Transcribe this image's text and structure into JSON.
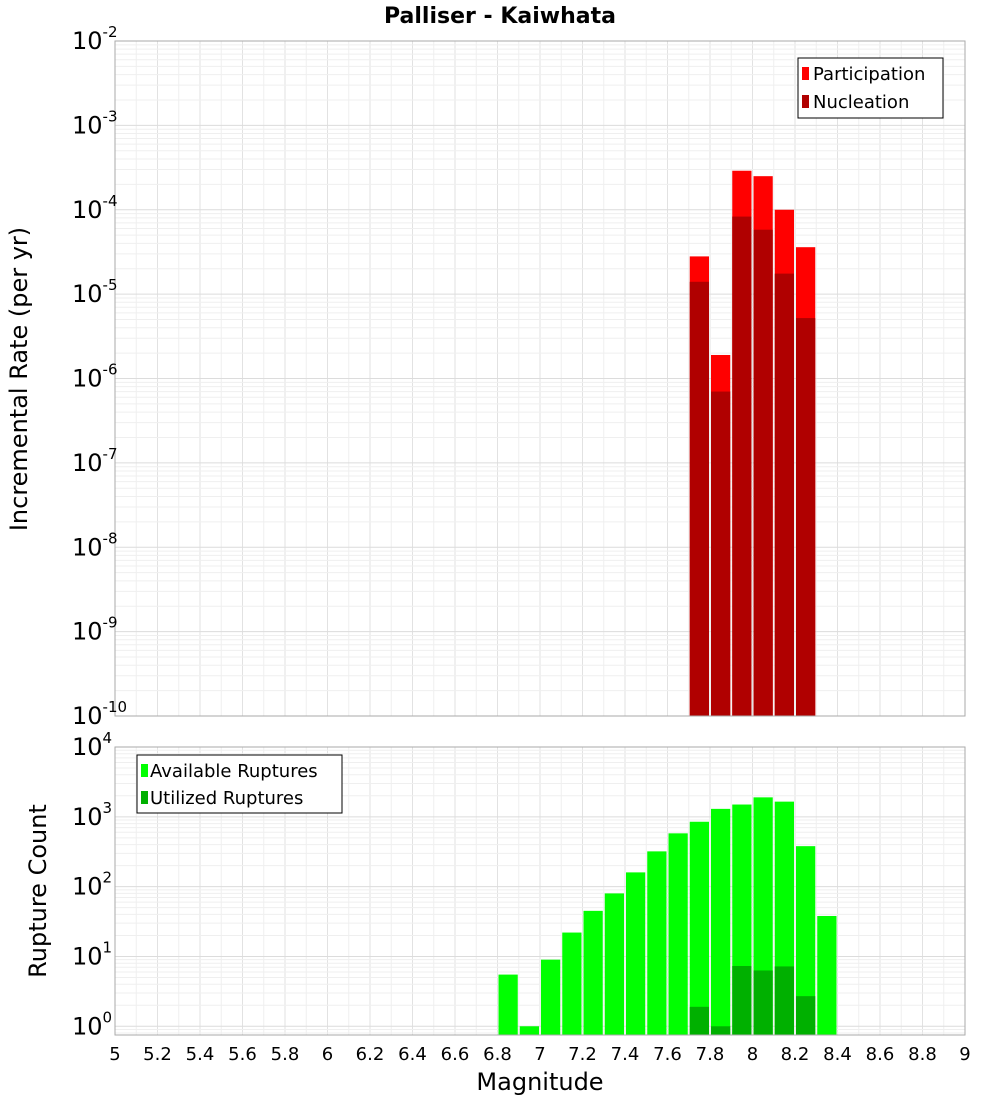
{
  "chart_data": [
    {
      "type": "bar",
      "title": "Palliser - Kaiwhata",
      "xlabel": "Magnitude",
      "ylabel": "Incremental Rate (per yr)",
      "yscale": "log",
      "xlim": [
        5,
        9
      ],
      "ylim": [
        1e-10,
        0.01
      ],
      "y_tick_exponents": [
        -10,
        -9,
        -8,
        -7,
        -6,
        -5,
        -4,
        -3,
        -2
      ],
      "grid": true,
      "legend_position": "top-right",
      "bar_width": 0.1,
      "series": [
        {
          "name": "Participation",
          "color": "#ff0000",
          "x": [
            7.75,
            7.85,
            7.95,
            8.05,
            8.15,
            8.25
          ],
          "values": [
            2.8e-05,
            1.9e-06,
            0.00029,
            0.00025,
            0.0001,
            3.6e-05
          ]
        },
        {
          "name": "Nucleation",
          "color": "#b00000",
          "x": [
            7.75,
            7.85,
            7.95,
            8.05,
            8.15,
            8.25
          ],
          "values": [
            1.4e-05,
            7e-07,
            8.3e-05,
            5.8e-05,
            1.75e-05,
            5.2e-06
          ]
        }
      ]
    },
    {
      "type": "bar",
      "xlabel": "Magnitude",
      "ylabel": "Rupture Count",
      "yscale": "log",
      "xlim": [
        5,
        9
      ],
      "ylim": [
        0.75,
        10000
      ],
      "y_tick_exponents": [
        0,
        1,
        2,
        3,
        4
      ],
      "x_ticks": [
        "5",
        "5.2",
        "5.4",
        "5.6",
        "5.8",
        "6",
        "6.2",
        "6.4",
        "6.6",
        "6.8",
        "7",
        "7.2",
        "7.4",
        "7.6",
        "7.8",
        "8",
        "8.2",
        "8.4",
        "8.6",
        "8.8",
        "9"
      ],
      "grid": true,
      "legend_position": "top-left",
      "bar_width": 0.1,
      "series": [
        {
          "name": "Available Ruptures",
          "color": "#00ff00",
          "x": [
            6.85,
            6.95,
            7.05,
            7.15,
            7.25,
            7.35,
            7.45,
            7.55,
            7.65,
            7.75,
            7.85,
            7.95,
            8.05,
            8.15,
            8.25,
            8.35
          ],
          "values": [
            5.5,
            1,
            9,
            22,
            45,
            80,
            160,
            320,
            580,
            850,
            1300,
            1500,
            1900,
            1650,
            380,
            38
          ]
        },
        {
          "name": "Utilized Ruptures",
          "color": "#00b000",
          "x": [
            7.75,
            7.85,
            7.95,
            8.05,
            8.15,
            8.25
          ],
          "values": [
            1.9,
            1,
            7.3,
            6.3,
            7.2,
            2.7
          ]
        }
      ]
    }
  ]
}
